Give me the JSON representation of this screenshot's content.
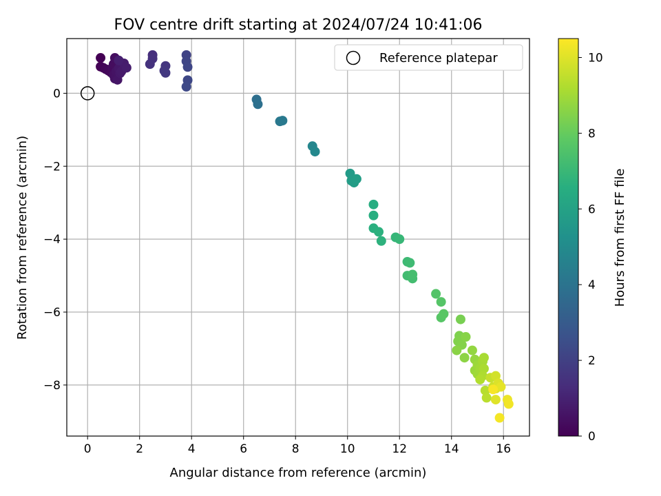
{
  "chart_data": {
    "type": "scatter",
    "title": "FOV centre drift starting at 2024/07/24 10:41:06",
    "xlabel": "Angular distance from reference (arcmin)",
    "ylabel": "Rotation from reference (arcmin)",
    "xlim": [
      -0.8,
      17.0
    ],
    "ylim": [
      -9.4,
      1.5
    ],
    "xticks": [
      0,
      2,
      4,
      6,
      8,
      10,
      12,
      14,
      16
    ],
    "yticks": [
      0,
      -2,
      -4,
      -6,
      -8
    ],
    "grid": true,
    "legend": {
      "position": "top-right",
      "label": "Reference platepar"
    },
    "reference_point": {
      "x": 0,
      "y": 0
    },
    "colorbar": {
      "label": "Hours from first FF file",
      "min": 0,
      "max": 10.5,
      "ticks": [
        0,
        2,
        4,
        6,
        8,
        10
      ],
      "colormap": "viridis"
    },
    "points": [
      {
        "x": 0.5,
        "y": 0.97,
        "h": 0.0
      },
      {
        "x": 0.5,
        "y": 0.73,
        "h": 0.05
      },
      {
        "x": 0.6,
        "y": 0.7,
        "h": 0.1
      },
      {
        "x": 0.7,
        "y": 0.66,
        "h": 0.15
      },
      {
        "x": 0.8,
        "y": 0.62,
        "h": 0.2
      },
      {
        "x": 0.9,
        "y": 0.57,
        "h": 0.25
      },
      {
        "x": 0.95,
        "y": 0.7,
        "h": 0.3
      },
      {
        "x": 1.0,
        "y": 0.8,
        "h": 0.35
      },
      {
        "x": 1.05,
        "y": 0.97,
        "h": 0.4
      },
      {
        "x": 1.0,
        "y": 0.5,
        "h": 0.45
      },
      {
        "x": 1.05,
        "y": 0.4,
        "h": 0.5
      },
      {
        "x": 1.1,
        "y": 0.6,
        "h": 0.55
      },
      {
        "x": 1.15,
        "y": 0.37,
        "h": 0.6
      },
      {
        "x": 1.2,
        "y": 0.68,
        "h": 0.65
      },
      {
        "x": 1.25,
        "y": 0.55,
        "h": 0.7
      },
      {
        "x": 1.3,
        "y": 0.6,
        "h": 0.75
      },
      {
        "x": 1.4,
        "y": 0.82,
        "h": 0.8
      },
      {
        "x": 1.5,
        "y": 0.7,
        "h": 0.85
      },
      {
        "x": 1.2,
        "y": 0.9,
        "h": 0.9
      },
      {
        "x": 2.5,
        "y": 1.05,
        "h": 1.4
      },
      {
        "x": 2.5,
        "y": 0.95,
        "h": 1.45
      },
      {
        "x": 2.4,
        "y": 0.8,
        "h": 1.5
      },
      {
        "x": 3.0,
        "y": 0.75,
        "h": 1.6
      },
      {
        "x": 2.95,
        "y": 0.62,
        "h": 1.65
      },
      {
        "x": 3.0,
        "y": 0.56,
        "h": 1.7
      },
      {
        "x": 3.8,
        "y": 1.05,
        "h": 2.1
      },
      {
        "x": 3.8,
        "y": 0.88,
        "h": 2.15
      },
      {
        "x": 3.85,
        "y": 0.72,
        "h": 2.2
      },
      {
        "x": 3.85,
        "y": 0.36,
        "h": 2.25
      },
      {
        "x": 3.8,
        "y": 0.18,
        "h": 2.3
      },
      {
        "x": 6.5,
        "y": -0.17,
        "h": 3.8
      },
      {
        "x": 6.55,
        "y": -0.3,
        "h": 3.85
      },
      {
        "x": 7.4,
        "y": -0.77,
        "h": 4.2
      },
      {
        "x": 7.5,
        "y": -0.75,
        "h": 4.25
      },
      {
        "x": 8.65,
        "y": -1.45,
        "h": 4.8
      },
      {
        "x": 8.75,
        "y": -1.6,
        "h": 4.85
      },
      {
        "x": 10.1,
        "y": -2.2,
        "h": 5.7
      },
      {
        "x": 10.15,
        "y": -2.4,
        "h": 5.75
      },
      {
        "x": 10.25,
        "y": -2.45,
        "h": 5.8
      },
      {
        "x": 10.35,
        "y": -2.35,
        "h": 5.85
      },
      {
        "x": 11.0,
        "y": -3.05,
        "h": 6.5
      },
      {
        "x": 11.0,
        "y": -3.35,
        "h": 6.55
      },
      {
        "x": 11.0,
        "y": -3.7,
        "h": 6.6
      },
      {
        "x": 11.2,
        "y": -3.8,
        "h": 6.65
      },
      {
        "x": 11.3,
        "y": -4.05,
        "h": 6.7
      },
      {
        "x": 11.85,
        "y": -3.95,
        "h": 6.9
      },
      {
        "x": 12.0,
        "y": -4.0,
        "h": 6.95
      },
      {
        "x": 12.3,
        "y": -4.62,
        "h": 7.1
      },
      {
        "x": 12.4,
        "y": -4.65,
        "h": 7.15
      },
      {
        "x": 12.3,
        "y": -5.0,
        "h": 7.2
      },
      {
        "x": 12.5,
        "y": -5.08,
        "h": 7.25
      },
      {
        "x": 12.5,
        "y": -4.97,
        "h": 7.3
      },
      {
        "x": 13.4,
        "y": -5.5,
        "h": 7.6
      },
      {
        "x": 13.6,
        "y": -5.72,
        "h": 7.65
      },
      {
        "x": 13.6,
        "y": -6.15,
        "h": 7.7
      },
      {
        "x": 13.7,
        "y": -6.05,
        "h": 7.75
      },
      {
        "x": 14.35,
        "y": -6.2,
        "h": 8.3
      },
      {
        "x": 14.3,
        "y": -6.65,
        "h": 8.4
      },
      {
        "x": 14.25,
        "y": -6.8,
        "h": 8.45
      },
      {
        "x": 14.4,
        "y": -6.9,
        "h": 8.5
      },
      {
        "x": 14.55,
        "y": -6.68,
        "h": 8.55
      },
      {
        "x": 14.2,
        "y": -7.05,
        "h": 8.6
      },
      {
        "x": 14.5,
        "y": -7.25,
        "h": 8.65
      },
      {
        "x": 14.8,
        "y": -7.05,
        "h": 8.75
      },
      {
        "x": 14.9,
        "y": -7.3,
        "h": 8.8
      },
      {
        "x": 14.9,
        "y": -7.6,
        "h": 8.85
      },
      {
        "x": 15.0,
        "y": -7.45,
        "h": 8.9
      },
      {
        "x": 15.0,
        "y": -7.7,
        "h": 8.95
      },
      {
        "x": 15.1,
        "y": -7.55,
        "h": 9.0
      },
      {
        "x": 15.2,
        "y": -7.35,
        "h": 9.05
      },
      {
        "x": 15.25,
        "y": -7.25,
        "h": 9.1
      },
      {
        "x": 15.25,
        "y": -7.55,
        "h": 9.15
      },
      {
        "x": 15.2,
        "y": -7.75,
        "h": 9.2
      },
      {
        "x": 15.1,
        "y": -7.85,
        "h": 9.25
      },
      {
        "x": 15.3,
        "y": -8.15,
        "h": 9.35
      },
      {
        "x": 15.35,
        "y": -8.35,
        "h": 9.4
      },
      {
        "x": 15.5,
        "y": -7.8,
        "h": 9.6
      },
      {
        "x": 15.6,
        "y": -8.05,
        "h": 9.7
      },
      {
        "x": 15.7,
        "y": -7.75,
        "h": 9.8
      },
      {
        "x": 15.7,
        "y": -8.1,
        "h": 9.9
      },
      {
        "x": 15.8,
        "y": -7.95,
        "h": 9.95
      },
      {
        "x": 15.7,
        "y": -8.4,
        "h": 10.0
      },
      {
        "x": 15.9,
        "y": -8.05,
        "h": 10.1
      },
      {
        "x": 16.15,
        "y": -8.4,
        "h": 10.2
      },
      {
        "x": 16.2,
        "y": -8.52,
        "h": 10.3
      },
      {
        "x": 15.85,
        "y": -8.9,
        "h": 10.35
      },
      {
        "x": 15.6,
        "y": -8.12,
        "h": 10.4
      }
    ]
  }
}
